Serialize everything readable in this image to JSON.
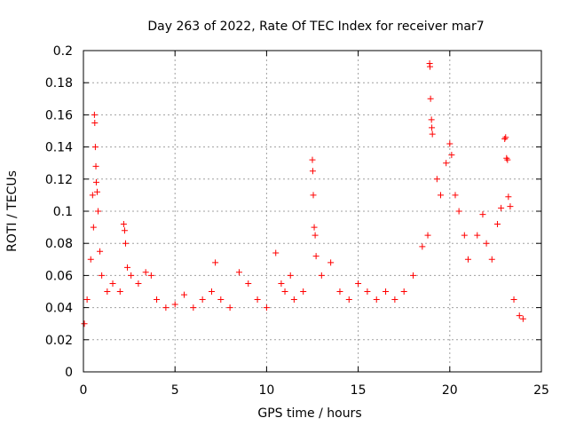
{
  "chart_data": {
    "type": "scatter",
    "title": "Day 263 of 2022, Rate Of TEC Index for receiver mar7",
    "xlabel": "GPS time / hours",
    "ylabel": "ROTI / TECUs",
    "xlim": [
      0,
      25
    ],
    "ylim": [
      0,
      0.2
    ],
    "xticks": [
      "0",
      "5",
      "10",
      "15",
      "20",
      "25"
    ],
    "yticks": [
      "0",
      "0.02",
      "0.04",
      "0.06",
      "0.08",
      "0.1",
      "0.12",
      "0.14",
      "0.16",
      "0.18",
      "0.2"
    ],
    "grid": true,
    "marker": "plus",
    "series_color": "#ff0000",
    "series": [
      {
        "values": [
          [
            0.05,
            0.03
          ],
          [
            0.2,
            0.045
          ],
          [
            0.4,
            0.07
          ],
          [
            0.5,
            0.11
          ],
          [
            0.55,
            0.09
          ],
          [
            0.6,
            0.16
          ],
          [
            0.62,
            0.155
          ],
          [
            0.65,
            0.14
          ],
          [
            0.68,
            0.128
          ],
          [
            0.7,
            0.118
          ],
          [
            0.75,
            0.112
          ],
          [
            0.8,
            0.1
          ],
          [
            0.9,
            0.075
          ],
          [
            1.0,
            0.06
          ],
          [
            1.3,
            0.05
          ],
          [
            1.6,
            0.055
          ],
          [
            2.0,
            0.05
          ],
          [
            2.2,
            0.092
          ],
          [
            2.25,
            0.088
          ],
          [
            2.3,
            0.08
          ],
          [
            2.4,
            0.065
          ],
          [
            2.6,
            0.06
          ],
          [
            3.0,
            0.055
          ],
          [
            3.4,
            0.062
          ],
          [
            3.7,
            0.06
          ],
          [
            4.0,
            0.045
          ],
          [
            4.5,
            0.04
          ],
          [
            5.0,
            0.042
          ],
          [
            5.5,
            0.048
          ],
          [
            6.0,
            0.04
          ],
          [
            6.5,
            0.045
          ],
          [
            7.0,
            0.05
          ],
          [
            7.2,
            0.068
          ],
          [
            7.5,
            0.045
          ],
          [
            8.0,
            0.04
          ],
          [
            8.5,
            0.062
          ],
          [
            9.0,
            0.055
          ],
          [
            9.5,
            0.045
          ],
          [
            10.0,
            0.04
          ],
          [
            10.5,
            0.074
          ],
          [
            10.8,
            0.055
          ],
          [
            11.0,
            0.05
          ],
          [
            11.3,
            0.06
          ],
          [
            11.5,
            0.045
          ],
          [
            12.0,
            0.05
          ],
          [
            12.5,
            0.132
          ],
          [
            12.52,
            0.125
          ],
          [
            12.55,
            0.11
          ],
          [
            12.6,
            0.09
          ],
          [
            12.65,
            0.085
          ],
          [
            12.7,
            0.072
          ],
          [
            13.0,
            0.06
          ],
          [
            13.5,
            0.068
          ],
          [
            14.0,
            0.05
          ],
          [
            14.5,
            0.045
          ],
          [
            15.0,
            0.055
          ],
          [
            15.5,
            0.05
          ],
          [
            16.0,
            0.045
          ],
          [
            16.5,
            0.05
          ],
          [
            17.0,
            0.045
          ],
          [
            17.5,
            0.05
          ],
          [
            18.0,
            0.06
          ],
          [
            18.5,
            0.078
          ],
          [
            18.8,
            0.085
          ],
          [
            18.9,
            0.192
          ],
          [
            18.92,
            0.19
          ],
          [
            18.95,
            0.17
          ],
          [
            19.0,
            0.157
          ],
          [
            19.02,
            0.152
          ],
          [
            19.05,
            0.148
          ],
          [
            19.3,
            0.12
          ],
          [
            19.5,
            0.11
          ],
          [
            19.8,
            0.13
          ],
          [
            20.0,
            0.142
          ],
          [
            20.1,
            0.135
          ],
          [
            20.3,
            0.11
          ],
          [
            20.5,
            0.1
          ],
          [
            20.8,
            0.085
          ],
          [
            21.0,
            0.07
          ],
          [
            21.5,
            0.085
          ],
          [
            21.8,
            0.098
          ],
          [
            22.0,
            0.08
          ],
          [
            22.3,
            0.07
          ],
          [
            22.6,
            0.092
          ],
          [
            22.8,
            0.102
          ],
          [
            23.0,
            0.145
          ],
          [
            23.05,
            0.146
          ],
          [
            23.1,
            0.133
          ],
          [
            23.15,
            0.132
          ],
          [
            23.2,
            0.109
          ],
          [
            23.3,
            0.103
          ],
          [
            23.5,
            0.045
          ],
          [
            23.8,
            0.035
          ],
          [
            24.0,
            0.033
          ]
        ]
      }
    ]
  }
}
